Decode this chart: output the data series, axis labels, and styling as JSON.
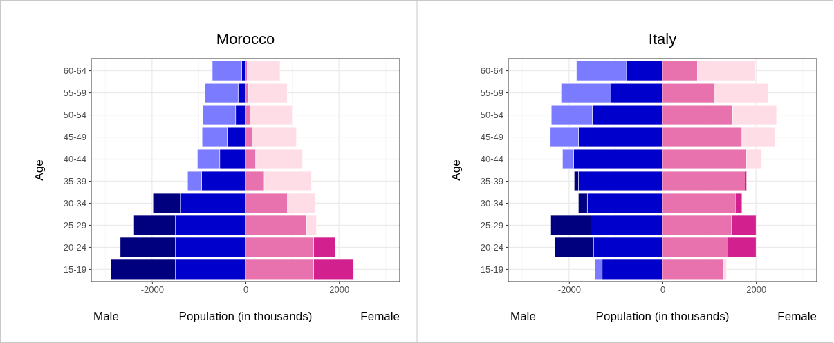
{
  "chart_data": [
    {
      "type": "bar",
      "title": "Morocco",
      "orientation": "horizontal",
      "stacked": true,
      "xlabel": "Population (in thousands)",
      "ylabel": "Age",
      "annotations": [
        "Male",
        "Female"
      ],
      "categories": [
        "60-64",
        "55-59",
        "50-54",
        "45-49",
        "40-44",
        "35-39",
        "30-34",
        "25-29",
        "20-24",
        "15-19"
      ],
      "xlim": [
        -3300,
        3300
      ],
      "xticks": [
        -2000,
        0,
        2000
      ],
      "grid": true,
      "series": [
        {
          "color": "#0000cc",
          "values": [
            -80,
            -160,
            -210,
            -390,
            -550,
            -940,
            -1390,
            -1500,
            -1500,
            -1500
          ]
        },
        {
          "colors": [
            "#7b7bff",
            "#7b7bff",
            "#7b7bff",
            "#7b7bff",
            "#7b7bff",
            "#7b7bff",
            "#00007f",
            "#00007f",
            "#00007f",
            "#00007f"
          ],
          "values": [
            -630,
            -710,
            -700,
            -540,
            -480,
            -300,
            -590,
            -890,
            -1180,
            -1380
          ]
        },
        {
          "color": "#e872ad",
          "values": [
            40,
            70,
            100,
            160,
            220,
            400,
            900,
            1310,
            1460,
            1460
          ]
        },
        {
          "colors": [
            "#ffdde6",
            "#ffdde6",
            "#ffdde6",
            "#ffdde6",
            "#ffdde6",
            "#ffdde6",
            "#ffdde6",
            "#ffdde6",
            "#d2208e",
            "#d2208e"
          ],
          "values": [
            700,
            820,
            900,
            930,
            1000,
            1010,
            590,
            210,
            460,
            850
          ]
        }
      ]
    },
    {
      "type": "bar",
      "title": "Italy",
      "orientation": "horizontal",
      "stacked": true,
      "xlabel": "Population (in thousands)",
      "ylabel": "Age",
      "annotations": [
        "Male",
        "Female"
      ],
      "categories": [
        "60-64",
        "55-59",
        "50-54",
        "45-49",
        "40-44",
        "35-39",
        "30-34",
        "25-29",
        "20-24",
        "15-19"
      ],
      "xlim": [
        -3300,
        3300
      ],
      "xticks": [
        -2000,
        0,
        2000
      ],
      "grid": true,
      "series": [
        {
          "color": "#0000cc",
          "values": [
            -770,
            -1100,
            -1500,
            -1800,
            -1900,
            -1800,
            -1610,
            -1530,
            -1470,
            -1290
          ]
        },
        {
          "colors": [
            "#7b7bff",
            "#7b7bff",
            "#7b7bff",
            "#7b7bff",
            "#7b7bff",
            "#00007f",
            "#00007f",
            "#00007f",
            "#00007f",
            "#7b7bff"
          ],
          "values": [
            -1070,
            -1070,
            -880,
            -600,
            -240,
            -90,
            -190,
            -860,
            -830,
            -150
          ]
        },
        {
          "color": "#e872ad",
          "values": [
            750,
            1100,
            1500,
            1700,
            1800,
            1770,
            1570,
            1470,
            1400,
            1300
          ]
        },
        {
          "colors": [
            "#ffdde6",
            "#ffdde6",
            "#ffdde6",
            "#ffdde6",
            "#ffdde6",
            "#d2208e",
            "#d2208e",
            "#d2208e",
            "#d2208e",
            "#ffdde6"
          ],
          "values": [
            1240,
            1160,
            940,
            700,
            320,
            30,
            130,
            530,
            600,
            70
          ]
        }
      ]
    }
  ]
}
